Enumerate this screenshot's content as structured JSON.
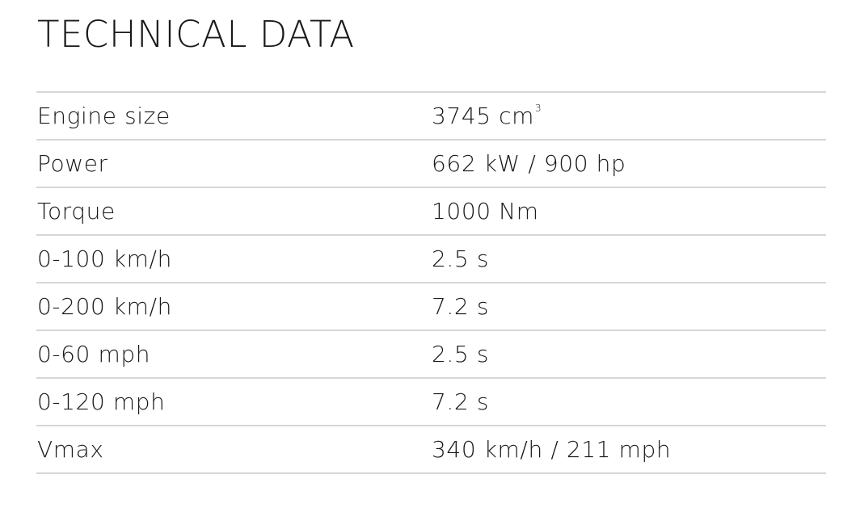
{
  "title": "TECHNICAL DATA",
  "rows": [
    {
      "label": "Engine size",
      "value": "3745 cm",
      "value_sup": "3"
    },
    {
      "label": "Power",
      "value": "662 kW / 900 hp"
    },
    {
      "label": "Torque",
      "value": "1000 Nm"
    },
    {
      "label": "0-100 km/h",
      "value": "2.5 s"
    },
    {
      "label": "0-200 km/h",
      "value": "7.2 s"
    },
    {
      "label": "0-60 mph",
      "value": "2.5 s"
    },
    {
      "label": "0-120 mph",
      "value": "7.2 s"
    },
    {
      "label": "Vmax",
      "value": "340 km/h / 211 mph"
    }
  ]
}
